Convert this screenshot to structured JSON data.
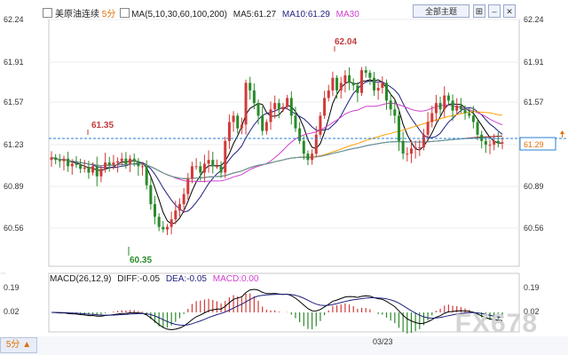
{
  "header": {
    "symbol": "美原油连续",
    "period": "5分",
    "ma_params": "MA(5,10,30,60,100,200)",
    "ma5_label": "MA5:61.27",
    "ma10_label": "MA10:61.29",
    "ma30_label": "MA30",
    "theme_button": "全部主题",
    "colors": {
      "ma5": "#000000",
      "ma10": "#1f1f7f",
      "ma30": "#d040d0",
      "ma60": "#ffa000",
      "ma100": "#8a1010",
      "ma200": "#5aa0a8",
      "up": "#d23a3a",
      "down": "#2a8a2a"
    }
  },
  "price_axis": {
    "ticks": [
      "62.24",
      "61.91",
      "61.57",
      "61.23",
      "60.89",
      "60.56"
    ],
    "current": "61.29"
  },
  "annotations": {
    "high": "62.04",
    "local_high": "61.35",
    "low": "60.35"
  },
  "macd": {
    "label": "MACD(26,12,9)",
    "diff": "DIFF:-0.05",
    "dea": "DEA:-0.05",
    "macd": "MACD:0.00",
    "ticks": [
      "0.19",
      "0.02"
    ]
  },
  "footer": {
    "period_button": "5分 ▲",
    "date": "03/23"
  },
  "watermark": "FX678",
  "chart_data": {
    "type": "candlestick",
    "ylim": [
      60.4,
      62.24
    ],
    "closes": [
      61.17,
      61.15,
      61.14,
      61.16,
      61.1,
      61.12,
      61.11,
      61.08,
      61.09,
      61.05,
      61.1,
      61.02,
      61.08,
      61.13,
      61.11,
      61.13,
      61.14,
      61.16,
      61.12,
      61.16,
      61.14,
      61.1,
      61.1,
      60.95,
      60.8,
      60.7,
      60.62,
      60.6,
      60.62,
      60.68,
      60.75,
      60.8,
      60.88,
      61.0,
      61.1,
      61.1,
      61.05,
      61.12,
      61.15,
      61.1,
      61.1,
      61.05,
      61.3,
      61.45,
      61.5,
      61.4,
      61.43,
      61.76,
      61.7,
      61.6,
      61.5,
      61.38,
      61.45,
      61.55,
      61.6,
      61.55,
      61.57,
      61.64,
      61.5,
      61.4,
      61.3,
      61.2,
      61.15,
      61.2,
      61.35,
      61.5,
      61.64,
      61.7,
      61.8,
      61.7,
      61.76,
      61.82,
      61.76,
      61.74,
      61.68,
      61.86,
      61.84,
      61.8,
      61.7,
      61.72,
      61.76,
      61.62,
      61.55,
      61.5,
      61.3,
      61.2,
      61.2,
      61.24,
      61.25,
      61.25,
      61.35,
      61.45,
      61.52,
      61.6,
      61.55,
      61.66,
      61.62,
      61.54,
      61.58,
      61.55,
      61.52,
      61.5,
      61.45,
      61.35,
      61.3,
      61.27,
      61.27,
      61.3,
      61.28,
      61.29
    ],
    "ma_series": [
      "MA5",
      "MA10",
      "MA30",
      "MA60",
      "MA100",
      "MA200"
    ]
  }
}
